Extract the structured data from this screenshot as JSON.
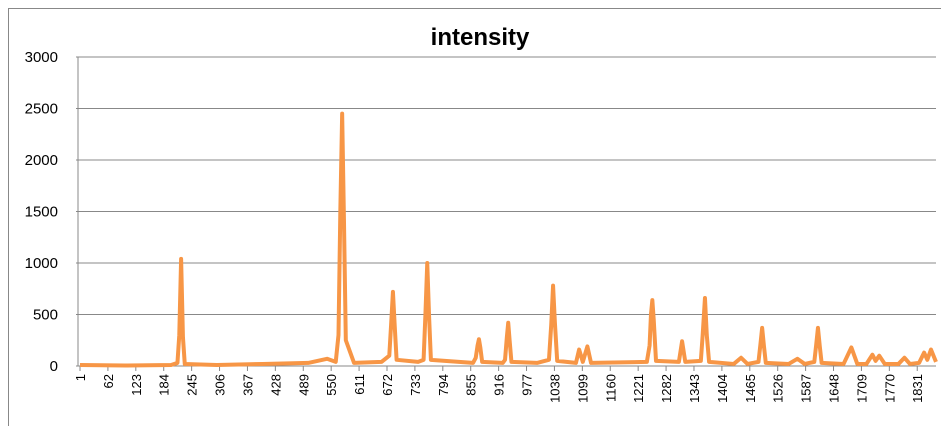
{
  "chart_data": {
    "type": "line",
    "title": "intensity",
    "x": [
      1,
      100,
      200,
      214,
      218,
      222,
      226,
      230,
      300,
      400,
      500,
      541,
      560,
      566,
      570,
      574,
      578,
      582,
      600,
      660,
      677,
      681,
      685,
      689,
      693,
      740,
      752,
      756,
      760,
      764,
      768,
      860,
      866,
      870,
      873,
      876,
      880,
      925,
      930,
      934,
      937,
      940,
      944,
      1000,
      1026,
      1031,
      1035,
      1039,
      1044,
      1085,
      1092,
      1100,
      1110,
      1118,
      1240,
      1246,
      1249,
      1252,
      1255,
      1260,
      1310,
      1317,
      1324,
      1358,
      1362,
      1367,
      1371,
      1376,
      1430,
      1446,
      1460,
      1484,
      1488,
      1492,
      1496,
      1500,
      1550,
      1569,
      1585,
      1606,
      1610,
      1614,
      1618,
      1622,
      1670,
      1687,
      1700,
      1720,
      1733,
      1740,
      1748,
      1760,
      1790,
      1803,
      1815,
      1835,
      1846,
      1853,
      1861,
      1872
    ],
    "series": [
      {
        "name": "intensity",
        "color": "#f79646",
        "values": [
          10,
          5,
          10,
          30,
          300,
          1040,
          280,
          20,
          10,
          20,
          30,
          70,
          40,
          300,
          1500,
          2450,
          1400,
          250,
          30,
          40,
          100,
          400,
          720,
          380,
          60,
          40,
          60,
          500,
          1000,
          480,
          60,
          30,
          80,
          200,
          260,
          180,
          40,
          30,
          60,
          280,
          420,
          250,
          40,
          30,
          60,
          400,
          780,
          420,
          50,
          30,
          160,
          40,
          190,
          30,
          40,
          200,
          500,
          640,
          450,
          50,
          40,
          240,
          40,
          50,
          300,
          660,
          300,
          40,
          20,
          80,
          20,
          40,
          200,
          370,
          190,
          30,
          20,
          70,
          20,
          40,
          200,
          370,
          190,
          30,
          20,
          180,
          20,
          20,
          110,
          50,
          100,
          20,
          20,
          80,
          20,
          30,
          130,
          60,
          160,
          40
        ]
      }
    ],
    "xlim": [
      1,
      1872
    ],
    "xticks": [
      1,
      62,
      123,
      184,
      245,
      306,
      367,
      428,
      489,
      550,
      611,
      672,
      733,
      794,
      855,
      916,
      977,
      1038,
      1099,
      1160,
      1221,
      1282,
      1343,
      1404,
      1465,
      1526,
      1587,
      1648,
      1709,
      1770,
      1831
    ],
    "ylim": [
      0,
      3000
    ],
    "yticks": [
      0,
      500,
      1000,
      1500,
      2000,
      2500,
      3000
    ],
    "grid": true
  }
}
